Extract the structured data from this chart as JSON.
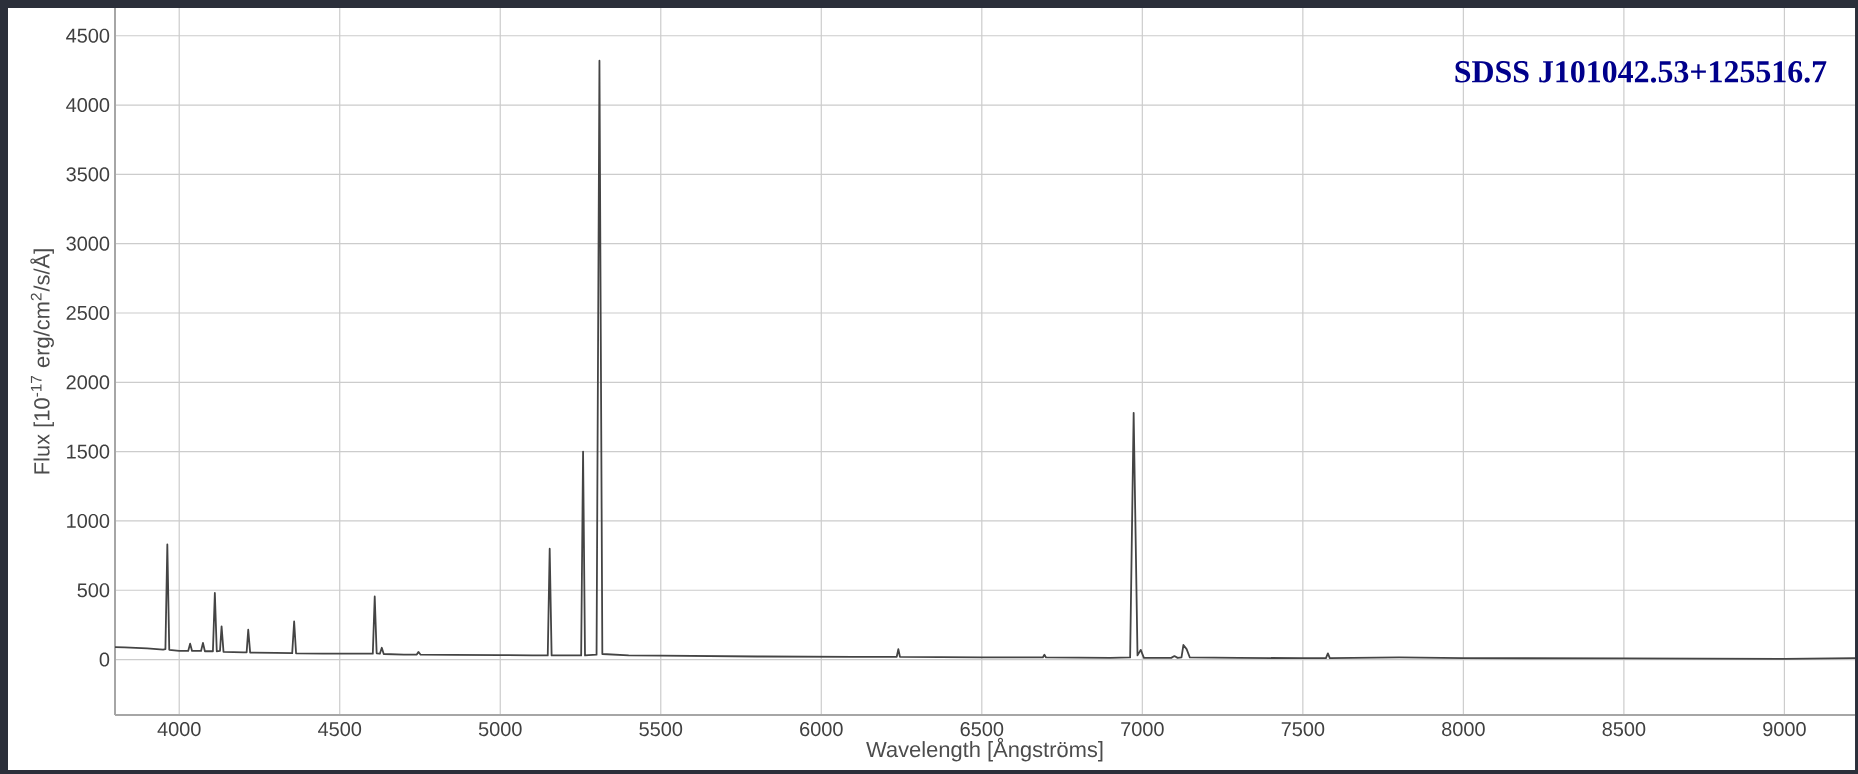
{
  "chart_data": {
    "type": "line",
    "xlabel": "Wavelength [Ångströms]",
    "ylabel": "Flux [10$^{-17}$ erg/cm$^{2}$/s/Å]",
    "annotations": [
      "SDSS J101042.53+125516.7"
    ],
    "xlim": [
      3800,
      9220
    ],
    "ylim": [
      -400,
      4700
    ],
    "xticks": [
      4000,
      4500,
      5000,
      5500,
      6000,
      6500,
      7000,
      7500,
      8000,
      8500,
      9000
    ],
    "yticks": [
      0,
      500,
      1000,
      1500,
      2000,
      2500,
      3000,
      3500,
      4000,
      4500
    ],
    "grid": true,
    "color": "#444444",
    "x": [
      3800,
      3830,
      3900,
      3950,
      3957,
      3963,
      3969,
      4000,
      4028,
      4034,
      4040,
      4068,
      4074,
      4080,
      4105,
      4111,
      4117,
      4127,
      4132,
      4138,
      4200,
      4210,
      4215,
      4221,
      4300,
      4352,
      4358,
      4364,
      4450,
      4550,
      4603,
      4609,
      4615,
      4625,
      4631,
      4637,
      4700,
      4740,
      4745,
      4752,
      4850,
      5000,
      5100,
      5148,
      5154,
      5160,
      5252,
      5258,
      5264,
      5300,
      5309,
      5318,
      5400,
      5500,
      5800,
      6100,
      6235,
      6240,
      6245,
      6500,
      6690,
      6695,
      6700,
      6900,
      6962,
      6973,
      6985,
      6995,
      7005,
      7090,
      7100,
      7110,
      7122,
      7128,
      7138,
      7148,
      7300,
      7500,
      7572,
      7578,
      7584,
      7800,
      8000,
      8500,
      9000,
      9220
    ],
    "values": [
      90,
      88,
      80,
      72,
      75,
      830,
      70,
      62,
      62,
      115,
      62,
      62,
      120,
      60,
      60,
      480,
      60,
      62,
      240,
      55,
      52,
      52,
      215,
      50,
      48,
      46,
      275,
      45,
      43,
      42,
      42,
      455,
      45,
      42,
      85,
      40,
      36,
      36,
      55,
      35,
      33,
      32,
      30,
      30,
      800,
      30,
      30,
      1500,
      30,
      35,
      4320,
      40,
      30,
      28,
      22,
      20,
      20,
      75,
      20,
      15,
      15,
      35,
      15,
      12,
      15,
      1780,
      30,
      70,
      12,
      12,
      25,
      12,
      15,
      105,
      75,
      15,
      12,
      10,
      10,
      45,
      10,
      15,
      10,
      8,
      5,
      10
    ]
  }
}
